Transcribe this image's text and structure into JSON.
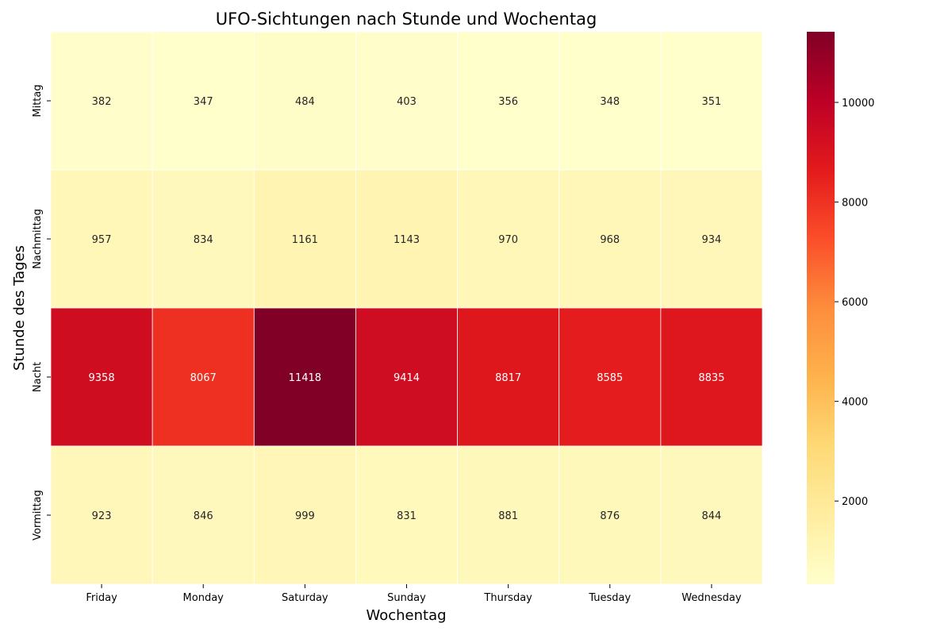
{
  "chart_data": {
    "type": "heatmap",
    "title": "UFO-Sichtungen nach Stunde und Wochentag",
    "xlabel": "Wochentag",
    "ylabel": "Stunde des Tages",
    "x_categories": [
      "Friday",
      "Monday",
      "Saturday",
      "Sunday",
      "Thursday",
      "Tuesday",
      "Wednesday"
    ],
    "y_categories": [
      "Mittag",
      "Nachmittag",
      "Nacht",
      "Vormittag"
    ],
    "values": [
      [
        382,
        347,
        484,
        403,
        356,
        348,
        351
      ],
      [
        957,
        834,
        1161,
        1143,
        970,
        968,
        934
      ],
      [
        9358,
        8067,
        11418,
        9414,
        8817,
        8585,
        8835
      ],
      [
        923,
        846,
        999,
        831,
        881,
        876,
        844
      ]
    ],
    "colormap": "YlOrRd",
    "colorbar": {
      "ticks": [
        2000,
        4000,
        6000,
        8000,
        10000
      ],
      "tick_labels": [
        "2000",
        "4000",
        "6000",
        "8000",
        "10000"
      ],
      "range": [
        331,
        11418
      ]
    }
  }
}
